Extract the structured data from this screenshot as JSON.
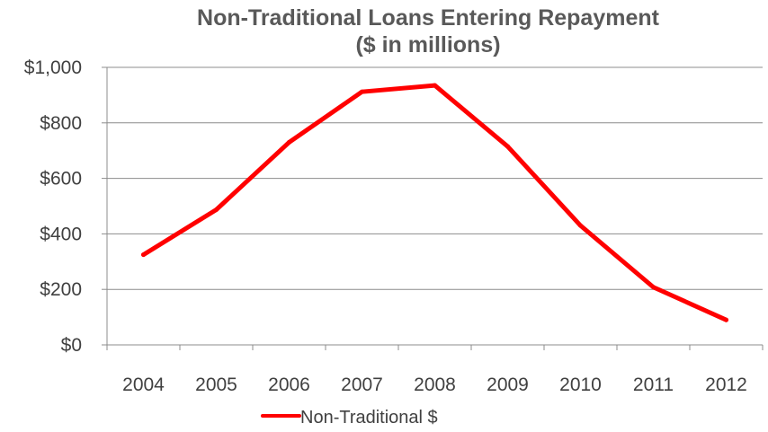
{
  "chart_data": {
    "type": "line",
    "title": "Non-Traditional Loans Entering Repayment",
    "subtitle": "($ in millions)",
    "xlabel": "",
    "ylabel": "",
    "categories": [
      "2004",
      "2005",
      "2006",
      "2007",
      "2008",
      "2009",
      "2010",
      "2011",
      "2012"
    ],
    "y_tick_labels": [
      "$0",
      "$200",
      "$400",
      "$600",
      "$800",
      "$1,000"
    ],
    "y_ticks": [
      0,
      200,
      400,
      600,
      800,
      1000
    ],
    "ylim": [
      0,
      1000
    ],
    "grid": true,
    "legend_position": "bottom",
    "series": [
      {
        "name": "Non-Traditional $",
        "color": "#ff0000",
        "values": [
          325,
          487,
          730,
          912,
          935,
          715,
          430,
          208,
          90
        ]
      }
    ]
  }
}
